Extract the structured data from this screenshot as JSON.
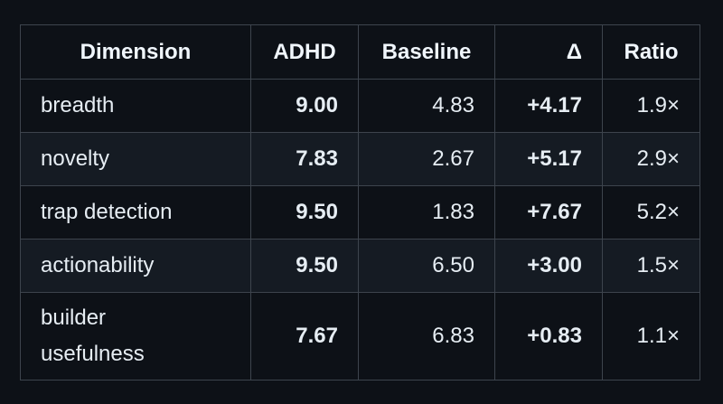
{
  "table": {
    "headers": {
      "dimension": "Dimension",
      "adhd": "ADHD",
      "baseline": "Baseline",
      "delta": "Δ",
      "ratio": "Ratio"
    },
    "rows": [
      {
        "dimension": "breadth",
        "adhd": "9.00",
        "baseline": "4.83",
        "delta": "+4.17",
        "ratio": "1.9×"
      },
      {
        "dimension": "novelty",
        "adhd": "7.83",
        "baseline": "2.67",
        "delta": "+5.17",
        "ratio": "2.9×"
      },
      {
        "dimension": "trap detection",
        "adhd": "9.50",
        "baseline": "1.83",
        "delta": "+7.67",
        "ratio": "5.2×"
      },
      {
        "dimension": "actionability",
        "adhd": "9.50",
        "baseline": "6.50",
        "delta": "+3.00",
        "ratio": "1.5×"
      },
      {
        "dimension": "builder usefulness",
        "adhd": "7.67",
        "baseline": "6.83",
        "delta": "+0.83",
        "ratio": "1.1×"
      }
    ]
  }
}
